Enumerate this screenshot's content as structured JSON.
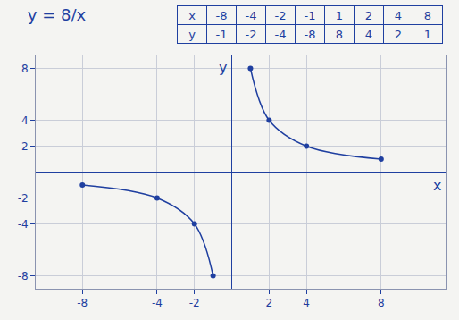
{
  "chart_data": {
    "type": "line",
    "title": "y = 8/x",
    "xlabel": "x",
    "ylabel": "y",
    "series": [
      {
        "x": [
          -8,
          -4,
          -2,
          -1
        ],
        "values": [
          -1,
          -2,
          -4,
          -8
        ],
        "color": "#1f3fa0",
        "marker": "circle",
        "line_style": "solid"
      },
      {
        "x": [
          1,
          2,
          4,
          8
        ],
        "values": [
          8,
          4,
          2,
          1
        ],
        "color": "#1f3fa0",
        "marker": "circle",
        "line_style": "solid"
      }
    ],
    "xlim": [
      -10.5,
      11.5
    ],
    "xticks": [
      -8,
      -4,
      -2,
      2,
      4,
      8
    ],
    "ylim": [
      -9,
      9
    ],
    "yticks": [
      -8,
      -4,
      -2,
      2,
      4,
      8
    ],
    "grid": true
  },
  "table": {
    "rows": [
      [
        "x",
        -8,
        -4,
        -2,
        -1,
        1,
        2,
        4,
        8
      ],
      [
        "y",
        -1,
        -2,
        -4,
        -8,
        8,
        4,
        2,
        1
      ]
    ]
  }
}
